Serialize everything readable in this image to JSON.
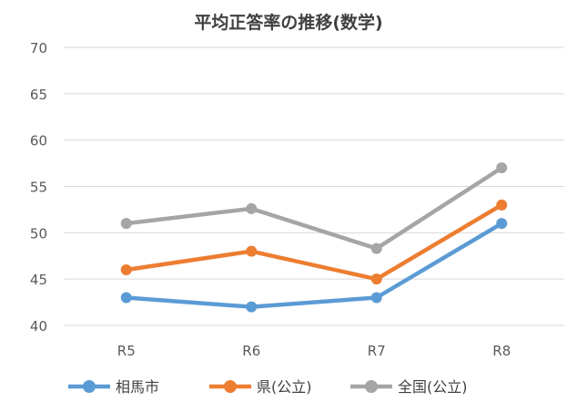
{
  "chart_data": {
    "type": "line",
    "title": "平均正答率の推移(数学)",
    "categories": [
      "R5",
      "R6",
      "R7",
      "R8"
    ],
    "ylim": [
      40,
      70
    ],
    "yticks": [
      40,
      45,
      50,
      55,
      60,
      65,
      70
    ],
    "grid": true,
    "legend_position": "bottom",
    "series": [
      {
        "name": "相馬市",
        "color": "#5B9BD5",
        "values": [
          43.0,
          42.0,
          43.0,
          51.0
        ]
      },
      {
        "name": "県(公立)",
        "color": "#ED7D31",
        "values": [
          46.0,
          48.0,
          45.0,
          53.0
        ]
      },
      {
        "name": "全国(公立)",
        "color": "#A5A5A5",
        "values": [
          51.0,
          52.6,
          48.3,
          57.0
        ]
      }
    ]
  }
}
